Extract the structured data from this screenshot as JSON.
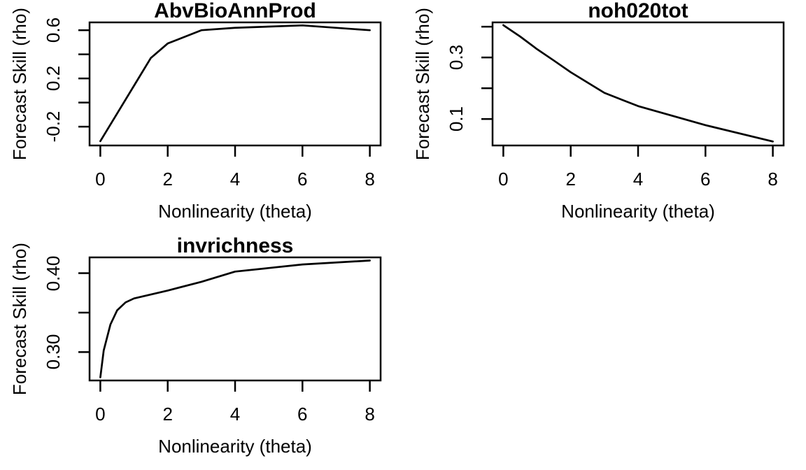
{
  "figure": {
    "background_color": "#ffffff",
    "line_color": "#000000",
    "text_color": "#000000"
  },
  "chart_data": [
    {
      "type": "line",
      "position": "top-left",
      "title": "AbvBioAnnProd",
      "xlabel": "Nonlinearity (theta)",
      "ylabel": "Forecast Skill (rho)",
      "x": [
        0,
        0.5,
        1,
        1.5,
        2,
        3,
        4,
        6,
        8
      ],
      "y": [
        -0.32,
        -0.09,
        0.14,
        0.37,
        0.49,
        0.6,
        0.62,
        0.64,
        0.6
      ],
      "xlim": [
        -0.32,
        8.32
      ],
      "ylim": [
        -0.356,
        0.665
      ],
      "grid": false,
      "legend": null,
      "xticks": [
        {
          "v": 0,
          "label": "0"
        },
        {
          "v": 2,
          "label": "2"
        },
        {
          "v": 4,
          "label": "4"
        },
        {
          "v": 6,
          "label": "6"
        },
        {
          "v": 8,
          "label": "8"
        }
      ],
      "yticks": [
        {
          "v": -0.2,
          "label": "-0.2"
        },
        {
          "v": 0.0,
          "label": ""
        },
        {
          "v": 0.2,
          "label": "0.2"
        },
        {
          "v": 0.4,
          "label": ""
        },
        {
          "v": 0.6,
          "label": "0.6"
        }
      ]
    },
    {
      "type": "line",
      "position": "top-right",
      "title": "noh020tot",
      "xlabel": "Nonlinearity (theta)",
      "ylabel": "Forecast Skill (rho)",
      "x": [
        0,
        0.5,
        1,
        1.5,
        2,
        3,
        4,
        6,
        8
      ],
      "y": [
        0.405,
        0.368,
        0.327,
        0.29,
        0.252,
        0.185,
        0.142,
        0.08,
        0.027
      ],
      "xlim": [
        -0.32,
        8.32
      ],
      "ylim": [
        0.014,
        0.414
      ],
      "grid": false,
      "legend": null,
      "xticks": [
        {
          "v": 0,
          "label": "0"
        },
        {
          "v": 2,
          "label": "2"
        },
        {
          "v": 4,
          "label": "4"
        },
        {
          "v": 6,
          "label": "6"
        },
        {
          "v": 8,
          "label": "8"
        }
      ],
      "yticks": [
        {
          "v": 0.1,
          "label": "0.1"
        },
        {
          "v": 0.2,
          "label": ""
        },
        {
          "v": 0.3,
          "label": "0.3"
        },
        {
          "v": 0.4,
          "label": ""
        }
      ]
    },
    {
      "type": "line",
      "position": "bottom-left",
      "title": "invrichness",
      "xlabel": "Nonlinearity (theta)",
      "ylabel": "Forecast Skill (rho)",
      "x": [
        0,
        0.1,
        0.3,
        0.5,
        0.75,
        1,
        1.5,
        2,
        3,
        4,
        6,
        8
      ],
      "y": [
        0.268,
        0.302,
        0.335,
        0.353,
        0.363,
        0.368,
        0.373,
        0.378,
        0.389,
        0.402,
        0.411,
        0.416
      ],
      "xlim": [
        -0.32,
        8.32
      ],
      "ylim": [
        0.264,
        0.42
      ],
      "grid": false,
      "legend": null,
      "xticks": [
        {
          "v": 0,
          "label": "0"
        },
        {
          "v": 2,
          "label": "2"
        },
        {
          "v": 4,
          "label": "4"
        },
        {
          "v": 6,
          "label": "6"
        },
        {
          "v": 8,
          "label": "8"
        }
      ],
      "yticks": [
        {
          "v": 0.3,
          "label": "0.30"
        },
        {
          "v": 0.35,
          "label": ""
        },
        {
          "v": 0.4,
          "label": "0.40"
        }
      ]
    }
  ]
}
